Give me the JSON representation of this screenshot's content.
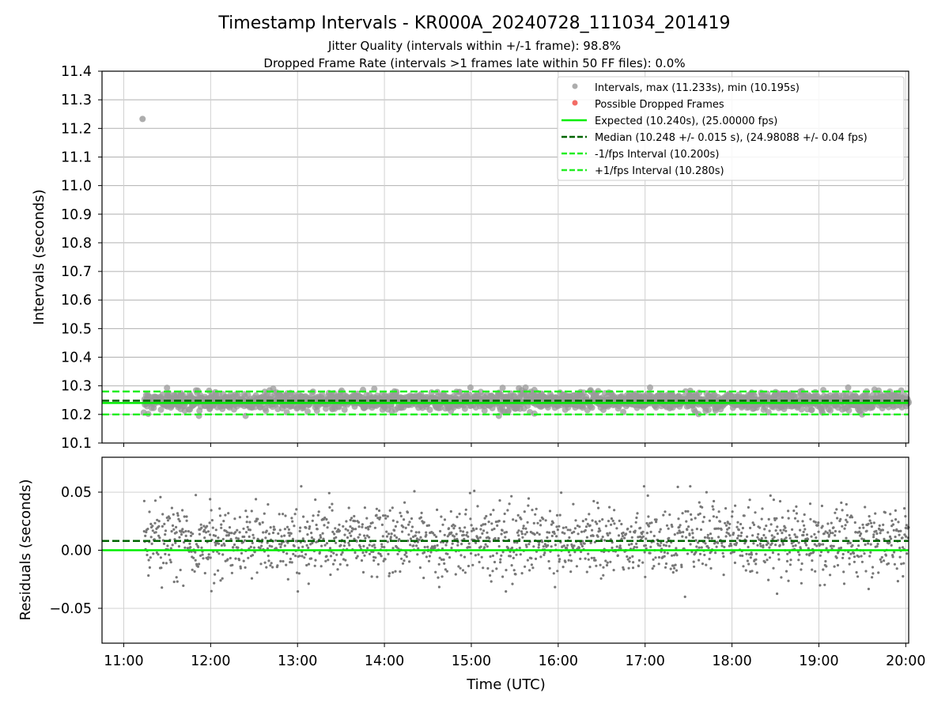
{
  "chart_data": [
    {
      "type": "scatter",
      "title": "Timestamp Intervals - KR000A_20240728_111034_201419",
      "subtitle_lines": [
        "Jitter Quality (intervals within +/-1 frame): 98.8%",
        "Dropped Frame Rate (intervals >1 frames late within 50 FF files): 0.0%"
      ],
      "xlabel": "",
      "ylabel": "Intervals (seconds)",
      "x_axis": "time_utc",
      "xlim": [
        "10:45",
        "20:02"
      ],
      "xticks": [
        "11:00",
        "12:00",
        "13:00",
        "14:00",
        "15:00",
        "16:00",
        "17:00",
        "18:00",
        "19:00",
        "20:00"
      ],
      "ylim": [
        10.1,
        11.4
      ],
      "yticks": [
        "10.1",
        "10.2",
        "10.3",
        "10.4",
        "10.5",
        "10.6",
        "10.7",
        "10.8",
        "10.9",
        "11.0",
        "11.1",
        "11.2",
        "11.3",
        "11.4"
      ],
      "grid": true,
      "legend_position": "top-right",
      "series": [
        {
          "name": "Intervals, max (11.233s), min (10.195s)",
          "kind": "scatter",
          "color": "#999999",
          "time_range": [
            "11:14",
            "20:02"
          ],
          "center": 10.248,
          "spread": 0.015,
          "min": 10.195,
          "max": 11.233,
          "outliers": [
            {
              "x": "11:13",
              "y": 11.233
            }
          ],
          "sample_count": 1800
        },
        {
          "name": "Possible Dropped Frames",
          "kind": "scatter",
          "color": "#f25c54",
          "points": []
        },
        {
          "name": "Expected (10.240s), (25.00000 fps)",
          "kind": "hline",
          "y": 10.24,
          "color": "#00ee00",
          "style": "solid"
        },
        {
          "name": "Median (10.248 +/- 0.015 s), (24.98088 +/- 0.04 fps)",
          "kind": "hline",
          "y": 10.248,
          "color": "#006400",
          "style": "dashed"
        },
        {
          "name": "-1/fps Interval (10.200s)",
          "kind": "hline",
          "y": 10.2,
          "color": "#22ee22",
          "style": "dashed"
        },
        {
          "name": "+1/fps Interval (10.280s)",
          "kind": "hline",
          "y": 10.28,
          "color": "#22ee22",
          "style": "dashed"
        }
      ]
    },
    {
      "type": "scatter",
      "title": "",
      "xlabel": "Time (UTC)",
      "ylabel": "Residuals (seconds)",
      "x_axis": "time_utc",
      "xlim": [
        "10:45",
        "20:02"
      ],
      "xticks": [
        "11:00",
        "12:00",
        "13:00",
        "14:00",
        "15:00",
        "16:00",
        "17:00",
        "18:00",
        "19:00",
        "20:00"
      ],
      "ylim": [
        -0.08,
        0.08
      ],
      "yticks": [
        "−0.05",
        "0.00",
        "0.05"
      ],
      "ytick_values": [
        -0.05,
        0,
        0.05
      ],
      "grid": true,
      "series": [
        {
          "name": "",
          "kind": "scatter",
          "color": "#777777",
          "time_range": [
            "11:14",
            "20:02"
          ],
          "center": 0.008,
          "spread": 0.015,
          "min": -0.045,
          "max": 0.055,
          "sample_count": 1800
        },
        {
          "name": "",
          "kind": "hline",
          "y": 0.0,
          "color": "#00ee00",
          "style": "solid"
        },
        {
          "name": "",
          "kind": "hline",
          "y": 0.008,
          "color": "#006400",
          "style": "dashed"
        }
      ]
    }
  ]
}
